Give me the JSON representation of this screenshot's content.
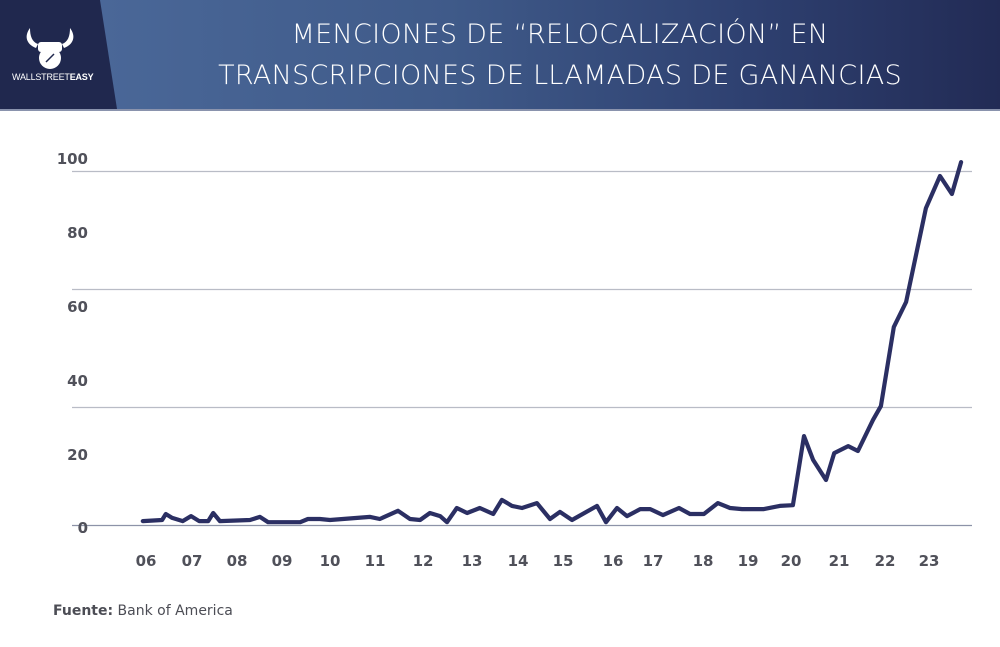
{
  "brand": {
    "logo_text_regular": "WALLSTREET",
    "logo_text_bold": "EASY",
    "colors": {
      "header_dark": "#20284e",
      "header_light": "#4d6b9c",
      "line": "#2b2f63",
      "grid": "#9aa0b0",
      "text": "#50515a"
    }
  },
  "chart_data": {
    "type": "line",
    "title_lines": [
      "MENCIONES DE “RELOCALIZACIÓN” EN",
      "TRANSCRIPCIONES DE LLAMADAS DE GANANCIAS"
    ],
    "xlabel": "",
    "ylabel": "",
    "x_tick_labels": [
      "06",
      "07",
      "08",
      "09",
      "10",
      "11",
      "12",
      "13",
      "14",
      "15",
      "16",
      "17",
      "18",
      "19",
      "20",
      "21",
      "22",
      "23"
    ],
    "x_tick_years": [
      2006,
      2007,
      2008,
      2009,
      2010,
      2011,
      2012,
      2013,
      2014,
      2015,
      2016,
      2017,
      2018,
      2019,
      2020,
      2021,
      2022,
      2023
    ],
    "y_tick_labels": [
      "100",
      "80",
      "60",
      "40",
      "20",
      "0"
    ],
    "ylim": [
      0,
      100
    ],
    "grid": "horizontal",
    "legend": "none",
    "series": [
      {
        "name": "Menciones de relocalización",
        "x": [
          2005.93,
          2006.35,
          2006.43,
          2006.57,
          2006.8,
          2006.98,
          2007.16,
          2007.36,
          2007.47,
          2007.62,
          2008.29,
          2008.51,
          2008.69,
          2009.38,
          2009.54,
          2009.79,
          2010.0,
          2010.89,
          2011.1,
          2011.48,
          2011.73,
          2011.94,
          2012.14,
          2012.35,
          2012.49,
          2012.69,
          2012.9,
          2013.17,
          2013.46,
          2013.65,
          2013.87,
          2014.09,
          2014.42,
          2014.71,
          2014.93,
          2015.18,
          2015.68,
          2015.86,
          2016.1,
          2016.35,
          2016.68,
          2016.93,
          2017.2,
          2017.52,
          2017.74,
          2018.02,
          2018.33,
          2018.6,
          2018.87,
          2019.37,
          2019.74,
          2020.04,
          2020.27,
          2020.46,
          2020.73,
          2020.9,
          2021.2,
          2021.41,
          2021.74,
          2021.91,
          2022.2,
          2022.48,
          2022.93,
          2023.25,
          2023.52,
          2023.73
        ],
        "values": [
          1.1,
          1.4,
          3.1,
          2.0,
          1.1,
          2.5,
          1.1,
          1.1,
          3.4,
          1.1,
          1.4,
          2.3,
          0.8,
          0.8,
          1.7,
          1.7,
          1.4,
          2.3,
          1.7,
          4.0,
          1.7,
          1.4,
          3.4,
          2.5,
          0.8,
          4.8,
          3.4,
          4.8,
          3.1,
          7.1,
          5.4,
          4.8,
          6.2,
          1.7,
          3.7,
          1.4,
          5.4,
          0.8,
          4.8,
          2.5,
          4.5,
          4.5,
          2.8,
          4.8,
          3.1,
          3.1,
          6.2,
          4.8,
          4.5,
          4.5,
          5.4,
          5.6,
          25.1,
          18.4,
          12.7,
          20.3,
          22.3,
          20.9,
          29.7,
          33.6,
          55.9,
          63.0,
          89.5,
          98.6,
          93.5,
          102.5
        ]
      }
    ]
  },
  "source": {
    "label": "Fuente:",
    "text": " Bank of America"
  }
}
